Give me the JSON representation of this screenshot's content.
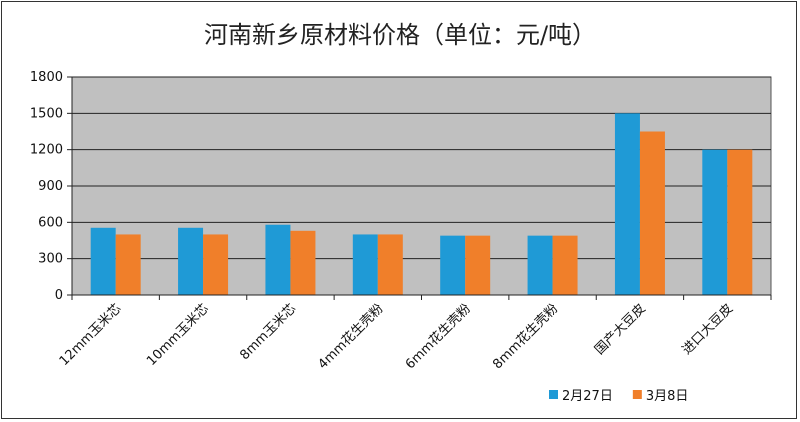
{
  "chart_data": {
    "type": "bar",
    "title": "河南新乡原材料价格（单位：元/吨）",
    "categories": [
      "12mm玉米芯",
      "10mm玉米芯",
      "8mm玉米芯",
      "4mm花生壳粉",
      "6mm花生壳粉",
      "8mm花生壳粉",
      "国产大豆皮",
      "进口大豆皮"
    ],
    "series": [
      {
        "name": "2月27日",
        "color": "#1f9ad6",
        "values": [
          555,
          555,
          580,
          500,
          490,
          490,
          1500,
          1200
        ]
      },
      {
        "name": "3月8日",
        "color": "#f07f2a",
        "values": [
          500,
          500,
          530,
          500,
          490,
          490,
          1350,
          1200
        ]
      }
    ],
    "ylim": [
      0,
      1800
    ],
    "yticks": [
      "0",
      "300",
      "600",
      "900",
      "1200",
      "1500",
      "1800"
    ],
    "grid": true,
    "plot_background": "#c0c0c0",
    "legend_position": "bottom-right"
  }
}
